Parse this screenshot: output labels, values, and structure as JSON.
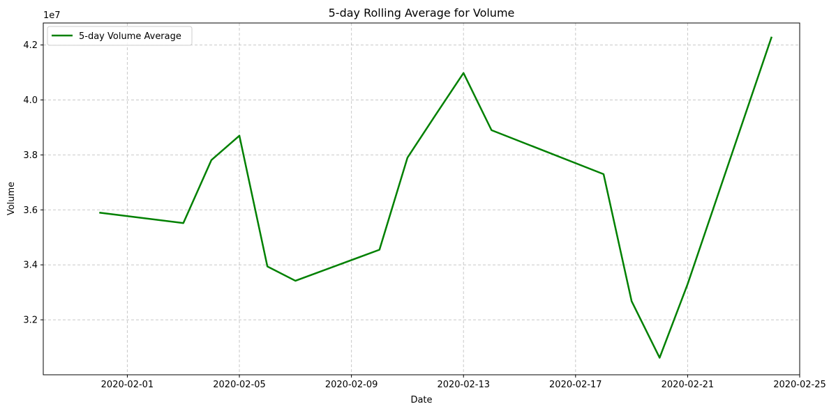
{
  "chart_data": {
    "type": "line",
    "title": "5-day Rolling Average for Volume",
    "xlabel": "Date",
    "ylabel": "Volume",
    "y_multiplier": "1e7",
    "xlim": [
      "2020-01-29",
      "2020-02-25"
    ],
    "ylim": [
      30000000,
      42800000
    ],
    "grid": true,
    "legend_position": "top-left",
    "x_ticks": [
      "2020-02-01",
      "2020-02-05",
      "2020-02-09",
      "2020-02-13",
      "2020-02-17",
      "2020-02-21",
      "2020-02-25"
    ],
    "y_ticks": [
      32000000,
      34000000,
      36000000,
      38000000,
      40000000,
      42000000
    ],
    "y_tick_labels": [
      "3.2",
      "3.4",
      "3.6",
      "3.8",
      "4.0",
      "4.2"
    ],
    "series": [
      {
        "name": "5-day Volume Average",
        "color": "#008000",
        "x": [
          "2020-01-31",
          "2020-02-03",
          "2020-02-04",
          "2020-02-05",
          "2020-02-06",
          "2020-02-07",
          "2020-02-10",
          "2020-02-11",
          "2020-02-12",
          "2020-02-13",
          "2020-02-14",
          "2020-02-18",
          "2020-02-19",
          "2020-02-20",
          "2020-02-21",
          "2020-02-24"
        ],
        "y": [
          35900000,
          35520000,
          37810000,
          38700000,
          33940000,
          33420000,
          34550000,
          37900000,
          39450000,
          40980000,
          38900000,
          37300000,
          32680000,
          30620000,
          33300000,
          42300000
        ]
      }
    ]
  }
}
